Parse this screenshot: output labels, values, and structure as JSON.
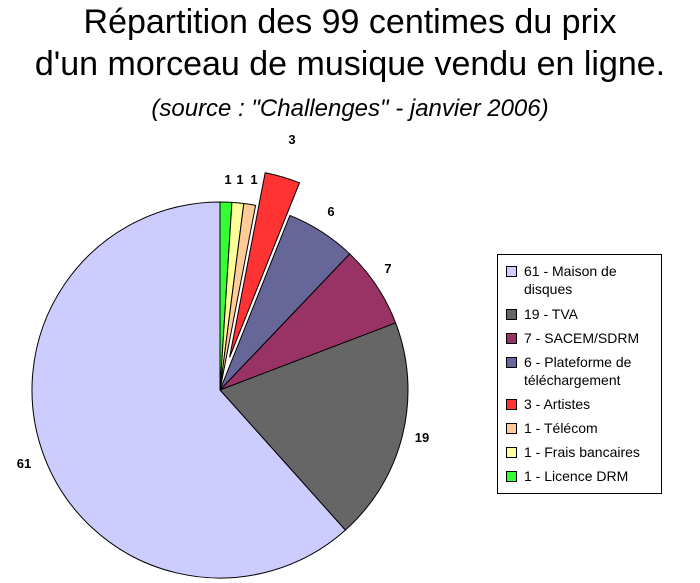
{
  "title_line1": "Répartition des 99 centimes du prix",
  "title_line2": "d'un morceau de musique vendu en ligne.",
  "subtitle": "(source : \"Challenges\" - janvier 2006)",
  "chart_data": {
    "type": "pie",
    "title": "Répartition des 99 centimes du prix d'un morceau de musique vendu en ligne.",
    "subtitle": "(source : \"Challenges\" - janvier 2006)",
    "total": 99,
    "legend_position": "right",
    "slices": [
      {
        "label": "61 - Maison de disques",
        "value": 61,
        "color": "#ccccff",
        "exploded": false
      },
      {
        "label": "19 - TVA",
        "value": 19,
        "color": "#666666",
        "exploded": false
      },
      {
        "label": "7 - SACEM/SDRM",
        "value": 7,
        "color": "#993366",
        "exploded": false
      },
      {
        "label": "6 - Plateforme de téléchargement",
        "value": 6,
        "color": "#666699",
        "exploded": false
      },
      {
        "label": "3 - Artistes",
        "value": 3,
        "color": "#ff3333",
        "exploded": true
      },
      {
        "label": "1 - Télécom",
        "value": 1,
        "color": "#ffcc99",
        "exploded": false
      },
      {
        "label": "1 - Frais bancaires",
        "value": 1,
        "color": "#ffff99",
        "exploded": false
      },
      {
        "label": "1 - Licence DRM",
        "value": 1,
        "color": "#33ff33",
        "exploded": false
      }
    ],
    "data_labels": [
      "61",
      "19",
      "7",
      "6",
      "3",
      "1",
      "1",
      "1"
    ]
  }
}
